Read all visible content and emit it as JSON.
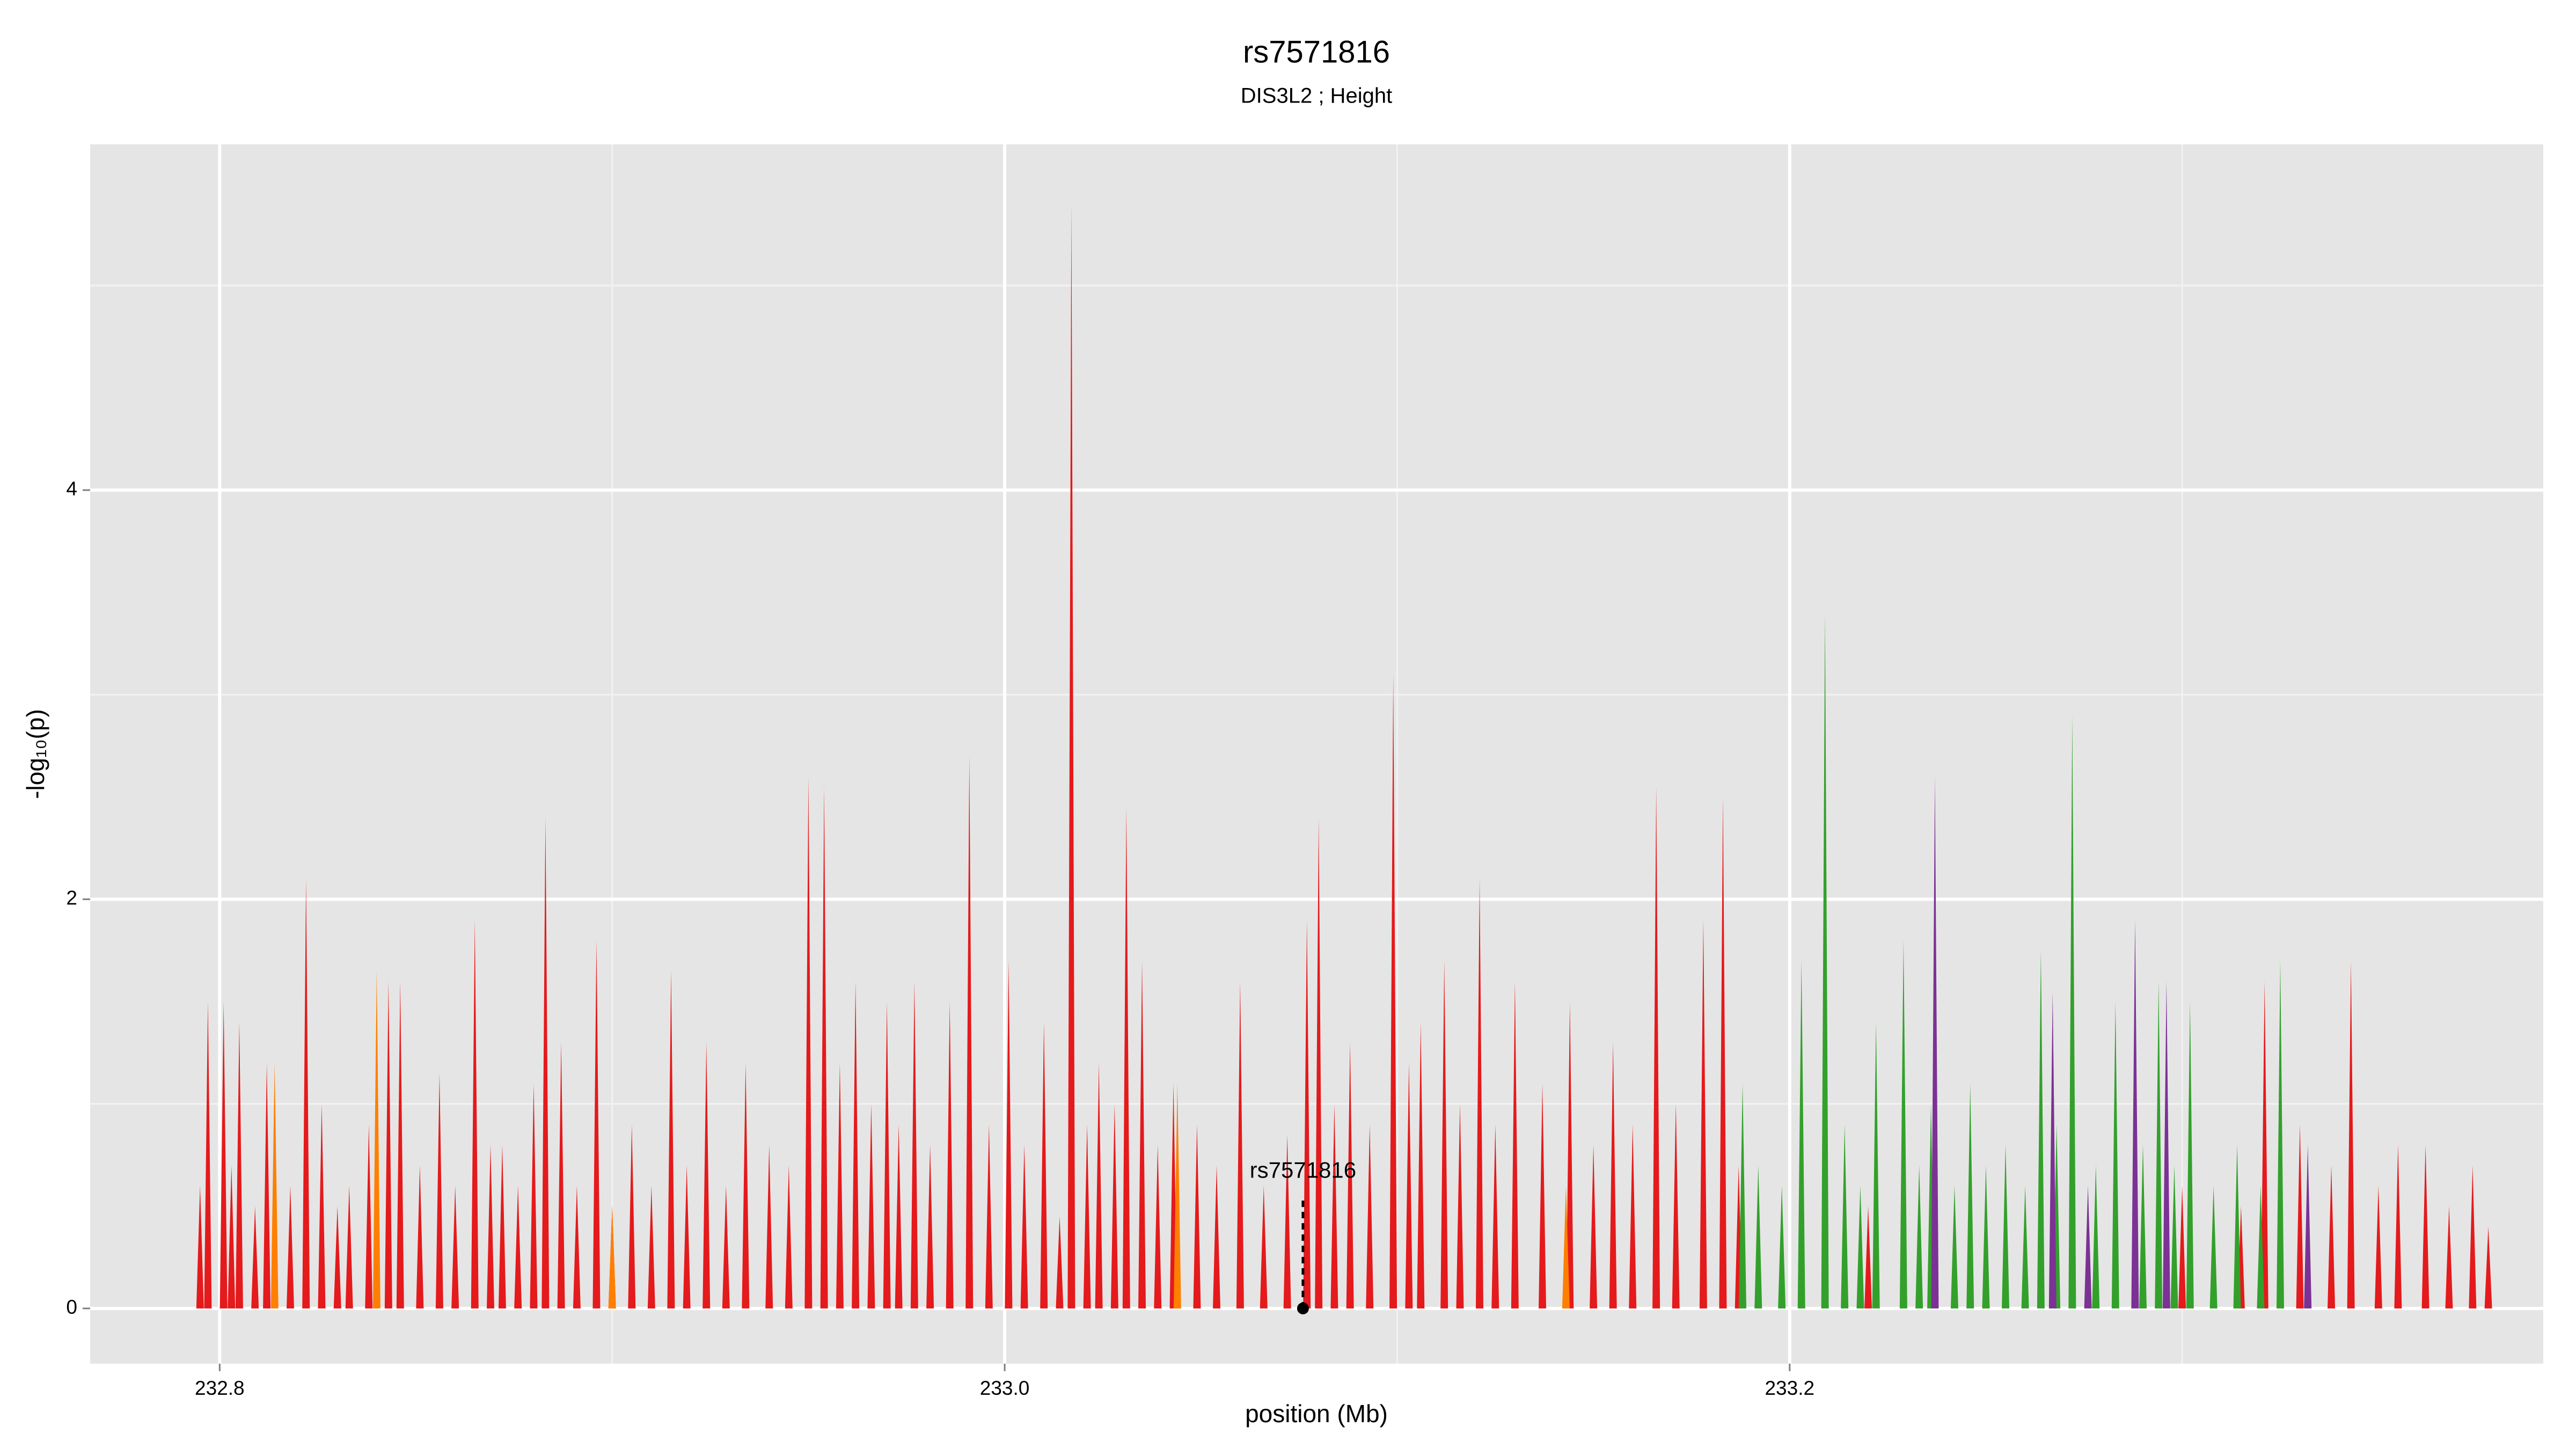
{
  "chart_data": {
    "type": "spike",
    "title": "rs7571816",
    "subtitle": "DIS3L2 ; Height",
    "x_label": "position (Mb)",
    "y_label": "-log₁₀(p)",
    "xlim": [
      232.767,
      233.392
    ],
    "ylim": [
      -0.27,
      5.69
    ],
    "xticks": [
      {
        "value": 232.8,
        "label": "232.8"
      },
      {
        "value": 233.0,
        "label": "233.0"
      },
      {
        "value": 233.2,
        "label": "233.2"
      }
    ],
    "yticks": [
      0,
      2,
      4
    ],
    "xminor": [
      232.9,
      233.1,
      233.3
    ],
    "yminor": [
      1,
      3,
      5
    ],
    "grid": true,
    "series": [
      {
        "name": "red",
        "color": "#e41a1c",
        "x": [
          232.795,
          232.797,
          232.801,
          232.803,
          232.805,
          232.809,
          232.812,
          232.818,
          232.822,
          232.826,
          232.83,
          232.833,
          232.838,
          232.843,
          232.846,
          232.851,
          232.856,
          232.86,
          232.865,
          232.869,
          232.872,
          232.876,
          232.88,
          232.883,
          232.887,
          232.891,
          232.896,
          232.9,
          232.905,
          232.91,
          232.915,
          232.919,
          232.924,
          232.929,
          232.934,
          232.94,
          232.945,
          232.95,
          232.954,
          232.958,
          232.962,
          232.966,
          232.97,
          232.973,
          232.977,
          232.981,
          232.986,
          232.991,
          232.996,
          233.001,
          233.005,
          233.01,
          233.014,
          233.017,
          233.021,
          233.024,
          233.028,
          233.031,
          233.035,
          233.039,
          233.043,
          233.049,
          233.054,
          233.06,
          233.066,
          233.072,
          233.077,
          233.08,
          233.084,
          233.088,
          233.093,
          233.099,
          233.103,
          233.106,
          233.112,
          233.116,
          233.121,
          233.125,
          233.13,
          233.137,
          233.144,
          233.15,
          233.155,
          233.16,
          233.166,
          233.171,
          233.178,
          233.183,
          233.187,
          233.22,
          233.25,
          233.3,
          233.315,
          233.321,
          233.33,
          233.338,
          233.343,
          233.35,
          233.355,
          233.362,
          233.368,
          233.374,
          233.378
        ],
        "values": [
          0.6,
          1.5,
          1.5,
          0.7,
          1.4,
          0.5,
          1.2,
          0.6,
          2.1,
          1.0,
          0.5,
          0.6,
          0.9,
          1.6,
          1.6,
          0.7,
          1.15,
          0.6,
          1.9,
          0.8,
          0.8,
          0.6,
          1.1,
          2.4,
          1.3,
          0.6,
          1.8,
          0.5,
          0.9,
          0.6,
          1.65,
          0.7,
          1.3,
          0.6,
          1.2,
          0.8,
          0.7,
          2.6,
          2.55,
          1.2,
          1.6,
          1.0,
          1.5,
          0.9,
          1.6,
          0.8,
          1.5,
          2.7,
          0.9,
          1.7,
          0.8,
          1.4,
          0.45,
          5.4,
          0.9,
          1.2,
          1.0,
          2.45,
          1.7,
          0.8,
          1.1,
          0.9,
          0.7,
          1.6,
          0.6,
          0.85,
          1.9,
          2.4,
          1.0,
          1.3,
          0.9,
          3.1,
          1.2,
          1.4,
          1.7,
          1.0,
          2.1,
          0.9,
          1.6,
          1.1,
          1.5,
          0.8,
          1.3,
          0.9,
          2.55,
          1.0,
          1.9,
          2.5,
          0.7,
          0.5,
          0.4,
          0.6,
          0.5,
          1.6,
          0.9,
          0.7,
          1.7,
          0.6,
          0.8,
          0.8,
          0.5,
          0.7,
          0.4
        ]
      },
      {
        "name": "green",
        "color": "#33a02c",
        "x": [
          233.188,
          233.192,
          233.198,
          233.203,
          233.209,
          233.214,
          233.218,
          233.222,
          233.229,
          233.233,
          233.236,
          233.242,
          233.246,
          233.25,
          233.255,
          233.26,
          233.264,
          233.268,
          233.272,
          233.278,
          233.283,
          233.29,
          233.294,
          233.298,
          233.302,
          233.308,
          233.314,
          233.32,
          233.325
        ],
        "values": [
          1.1,
          0.7,
          0.6,
          1.7,
          3.4,
          0.9,
          0.6,
          1.4,
          1.8,
          0.7,
          1.0,
          0.6,
          1.1,
          0.7,
          0.8,
          0.6,
          1.75,
          0.9,
          2.9,
          0.7,
          1.5,
          0.8,
          1.6,
          0.7,
          1.5,
          0.6,
          0.8,
          0.6,
          1.7
        ]
      },
      {
        "name": "purple",
        "color": "#7b3294",
        "x": [
          233.237,
          233.267,
          233.276,
          233.288,
          233.296,
          233.332
        ],
        "values": [
          2.6,
          1.55,
          0.6,
          1.9,
          1.6,
          0.8
        ]
      },
      {
        "name": "orange",
        "color": "#ff7f00",
        "x": [
          232.814,
          232.84,
          232.9,
          233.044,
          233.143
        ],
        "values": [
          1.2,
          1.65,
          0.5,
          1.1,
          0.6
        ]
      }
    ],
    "annotation": {
      "label": "rs7571816",
      "x": 233.076,
      "y": 0,
      "line_top": 0.55
    }
  }
}
